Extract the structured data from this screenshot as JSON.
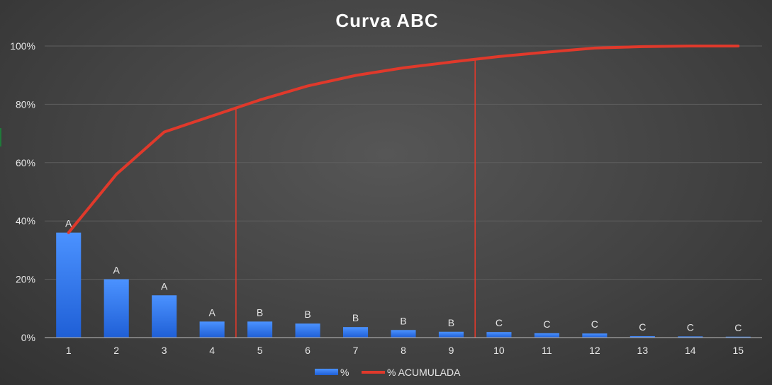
{
  "chart_data": {
    "type": "bar",
    "title": "Curva ABC",
    "categories": [
      "1",
      "2",
      "3",
      "4",
      "5",
      "6",
      "7",
      "8",
      "9",
      "10",
      "11",
      "12",
      "13",
      "14",
      "15"
    ],
    "series": [
      {
        "name": "%",
        "kind": "bar",
        "color": "#3b82f6",
        "values": [
          36,
          20,
          14.5,
          5.5,
          5.5,
          4.8,
          3.6,
          2.6,
          2.0,
          1.9,
          1.5,
          1.4,
          0.5,
          0.4,
          0.3
        ]
      },
      {
        "name": "% ACUMULADA",
        "kind": "line",
        "color": "#e0392b",
        "values": [
          36,
          56,
          70.5,
          76,
          81.5,
          86.3,
          89.9,
          92.5,
          94.5,
          96.4,
          97.9,
          99.3,
          99.8,
          100,
          100
        ]
      }
    ],
    "bar_labels": [
      "A",
      "A",
      "A",
      "A",
      "B",
      "B",
      "B",
      "B",
      "B",
      "C",
      "C",
      "C",
      "C",
      "C",
      "C"
    ],
    "class_dividers": [
      {
        "between": [
          "4",
          "5"
        ],
        "color": "#e0392b"
      },
      {
        "between": [
          "9",
          "10"
        ],
        "color": "#e0392b"
      }
    ],
    "y_ticks": [
      "0%",
      "20%",
      "40%",
      "60%",
      "80%",
      "100%"
    ],
    "ylim": [
      0,
      100
    ],
    "grid": true,
    "legend_position": "bottom"
  }
}
